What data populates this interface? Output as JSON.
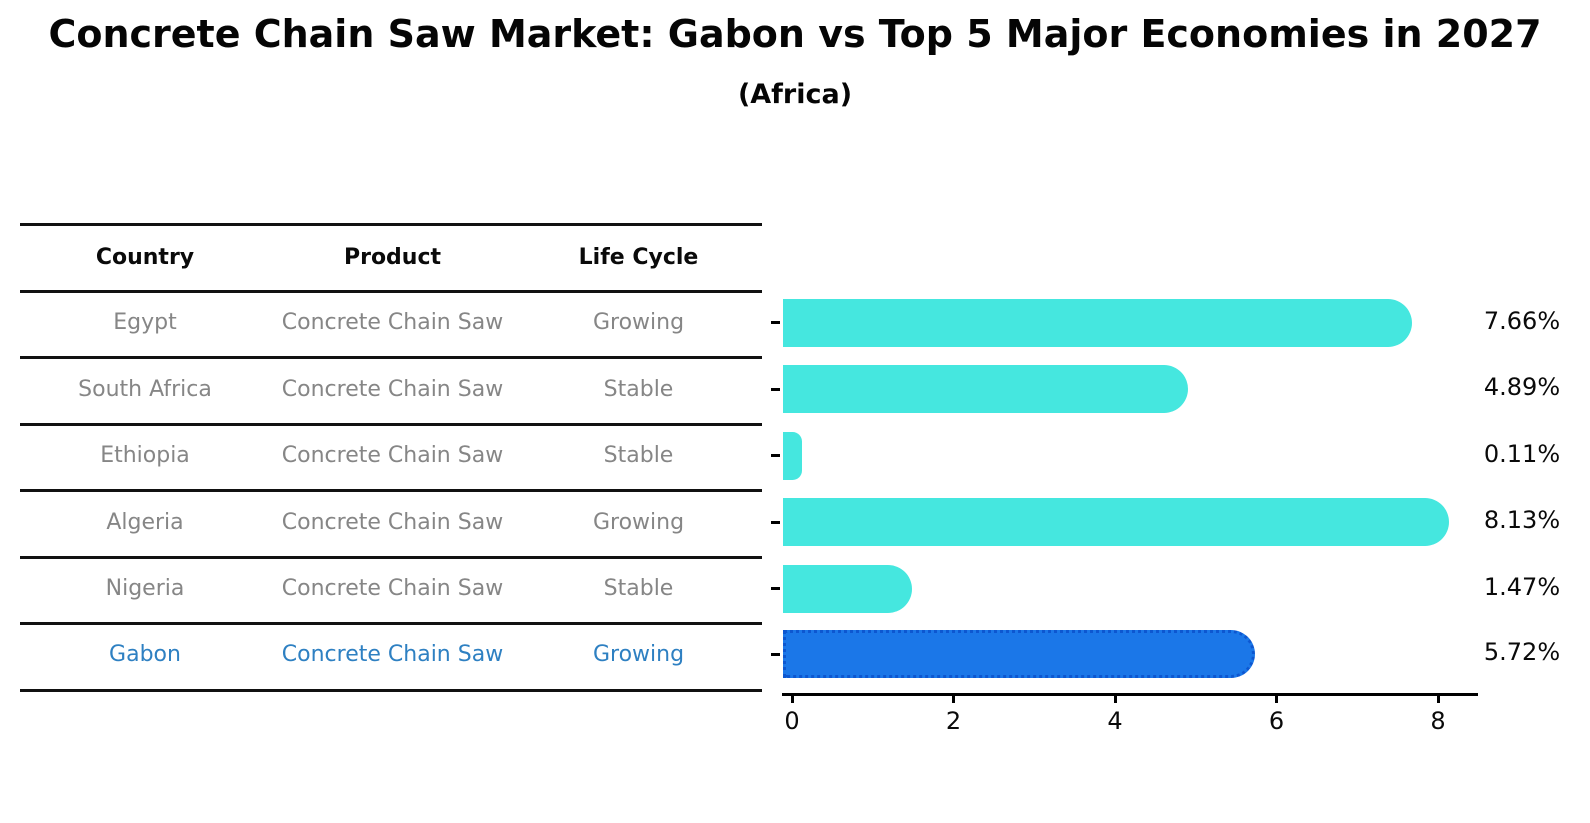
{
  "title": "Concrete Chain Saw Market: Gabon vs Top 5 Major Economies in 2027",
  "subtitle": "(Africa)",
  "colors": {
    "bar": "#45E7DF",
    "highlight_bar": "#1B77E8",
    "highlight_bar_border": "#0D57D0",
    "highlight_text": "#2E80C2",
    "row_text": "#868686",
    "header_text": "#0A0A0A",
    "axis": "#000000"
  },
  "table": {
    "headers": [
      "Country",
      "Product",
      "Life Cycle"
    ],
    "rows": [
      {
        "country": "Egypt",
        "product": "Concrete Chain Saw",
        "life_cycle": "Growing",
        "highlight": false
      },
      {
        "country": "South Africa",
        "product": "Concrete Chain Saw",
        "life_cycle": "Stable",
        "highlight": false
      },
      {
        "country": "Ethiopia",
        "product": "Concrete Chain Saw",
        "life_cycle": "Stable",
        "highlight": false
      },
      {
        "country": "Algeria",
        "product": "Concrete Chain Saw",
        "life_cycle": "Growing",
        "highlight": false
      },
      {
        "country": "Nigeria",
        "product": "Concrete Chain Saw",
        "life_cycle": "Stable",
        "highlight": false
      },
      {
        "country": "Gabon",
        "product": "Concrete Chain Saw",
        "life_cycle": "Growing",
        "highlight": true
      }
    ]
  },
  "chart_data": {
    "type": "bar",
    "orientation": "horizontal",
    "title": "Concrete Chain Saw Market: Gabon vs Top 5 Major Economies in 2027 (Africa)",
    "categories": [
      "Egypt",
      "South Africa",
      "Ethiopia",
      "Algeria",
      "Nigeria",
      "Gabon"
    ],
    "values": [
      7.66,
      4.89,
      0.11,
      8.13,
      1.47,
      5.72
    ],
    "value_labels": [
      "7.66%",
      "4.89%",
      "0.11%",
      "8.13%",
      "1.47%",
      "5.72%"
    ],
    "unit": "%",
    "highlight_category": "Gabon",
    "xlabel": "",
    "ylabel": "",
    "xlim": [
      0,
      8.5
    ],
    "xticks": [
      0,
      2,
      4,
      6,
      8
    ],
    "grid": false,
    "legend": false
  }
}
